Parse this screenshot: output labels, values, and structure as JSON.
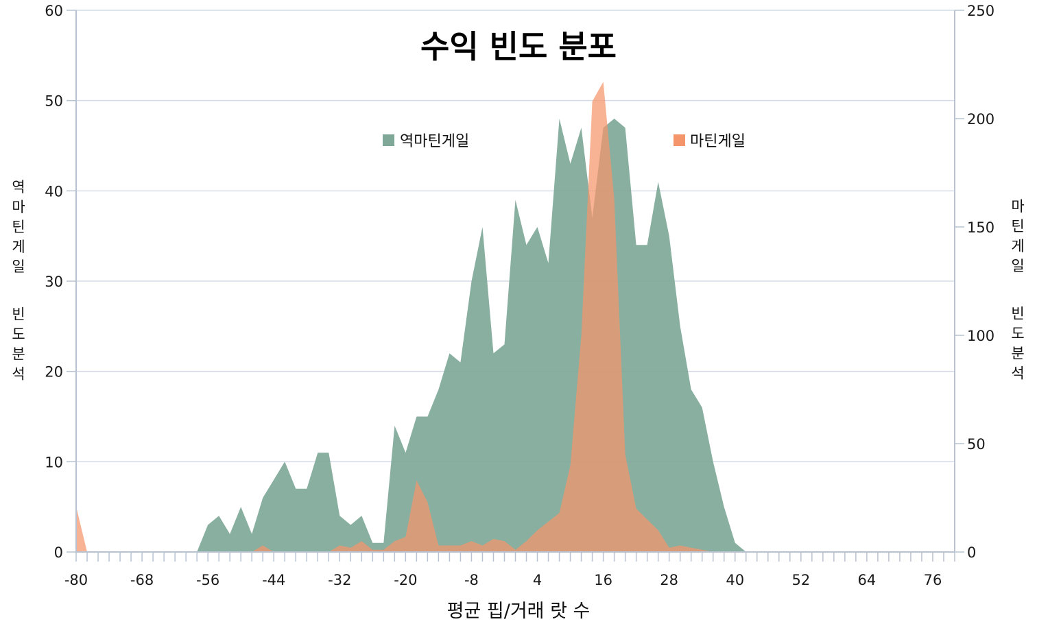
{
  "chart_data": {
    "type": "area",
    "title": "수익 빈도 분포",
    "xlabel": "평균 핍/거래 랏 수",
    "ylabel_left": "역마틴게일 빈도분석",
    "ylabel_right": "마틴게일 빈도분석",
    "xlim": [
      -80,
      80
    ],
    "x_ticks": [
      -80,
      -68,
      -56,
      -44,
      -32,
      -20,
      -8,
      4,
      16,
      28,
      40,
      52,
      64,
      76
    ],
    "ylim_left": [
      0,
      60
    ],
    "y_ticks_left": [
      0,
      10,
      20,
      30,
      40,
      50,
      60
    ],
    "ylim_right": [
      0,
      250
    ],
    "y_ticks_right": [
      0,
      50,
      100,
      150,
      200,
      250
    ],
    "grid": true,
    "legend_placement": "top-center",
    "series": [
      {
        "name": "역마틴게일",
        "axis": "left",
        "color": "#7fa899",
        "points": [
          [
            -80,
            0
          ],
          [
            -58,
            0
          ],
          [
            -56,
            3
          ],
          [
            -54,
            4
          ],
          [
            -52,
            2
          ],
          [
            -50,
            5
          ],
          [
            -48,
            2
          ],
          [
            -46,
            6
          ],
          [
            -44,
            8
          ],
          [
            -42,
            10
          ],
          [
            -40,
            7
          ],
          [
            -38,
            7
          ],
          [
            -36,
            11
          ],
          [
            -34,
            11
          ],
          [
            -32,
            4
          ],
          [
            -30,
            3
          ],
          [
            -28,
            4
          ],
          [
            -26,
            1
          ],
          [
            -24,
            1
          ],
          [
            -22,
            14
          ],
          [
            -20,
            11
          ],
          [
            -18,
            15
          ],
          [
            -16,
            15
          ],
          [
            -14,
            18
          ],
          [
            -12,
            22
          ],
          [
            -10,
            21
          ],
          [
            -8,
            30
          ],
          [
            -6,
            36
          ],
          [
            -4,
            22
          ],
          [
            -2,
            23
          ],
          [
            0,
            39
          ],
          [
            2,
            34
          ],
          [
            4,
            36
          ],
          [
            6,
            32
          ],
          [
            8,
            48
          ],
          [
            10,
            43
          ],
          [
            12,
            47
          ],
          [
            14,
            37
          ],
          [
            16,
            47
          ],
          [
            18,
            48
          ],
          [
            20,
            47
          ],
          [
            22,
            34
          ],
          [
            24,
            34
          ],
          [
            26,
            41
          ],
          [
            28,
            35
          ],
          [
            30,
            25
          ],
          [
            32,
            18
          ],
          [
            34,
            16
          ],
          [
            36,
            10
          ],
          [
            38,
            5
          ],
          [
            40,
            1
          ],
          [
            42,
            0
          ],
          [
            80,
            0
          ]
        ]
      },
      {
        "name": "마틴게일",
        "axis": "right",
        "color": "#f5956b",
        "points": [
          [
            -80,
            21
          ],
          [
            -78,
            0
          ],
          [
            -48,
            0
          ],
          [
            -46,
            3
          ],
          [
            -44,
            0
          ],
          [
            -36,
            0
          ],
          [
            -34,
            0
          ],
          [
            -32,
            3
          ],
          [
            -30,
            2
          ],
          [
            -28,
            5
          ],
          [
            -26,
            1
          ],
          [
            -24,
            1
          ],
          [
            -22,
            5
          ],
          [
            -20,
            7
          ],
          [
            -18,
            33
          ],
          [
            -16,
            23
          ],
          [
            -14,
            3
          ],
          [
            -12,
            3
          ],
          [
            -10,
            3
          ],
          [
            -8,
            5
          ],
          [
            -6,
            3
          ],
          [
            -4,
            6
          ],
          [
            -2,
            5
          ],
          [
            0,
            1
          ],
          [
            2,
            5
          ],
          [
            4,
            10
          ],
          [
            6,
            14
          ],
          [
            8,
            18
          ],
          [
            10,
            40
          ],
          [
            12,
            100
          ],
          [
            14,
            208
          ],
          [
            16,
            217
          ],
          [
            18,
            163
          ],
          [
            20,
            45
          ],
          [
            22,
            20
          ],
          [
            24,
            15
          ],
          [
            26,
            10
          ],
          [
            28,
            2
          ],
          [
            30,
            3
          ],
          [
            32,
            2
          ],
          [
            34,
            1
          ],
          [
            36,
            0
          ],
          [
            80,
            0
          ]
        ]
      }
    ]
  }
}
